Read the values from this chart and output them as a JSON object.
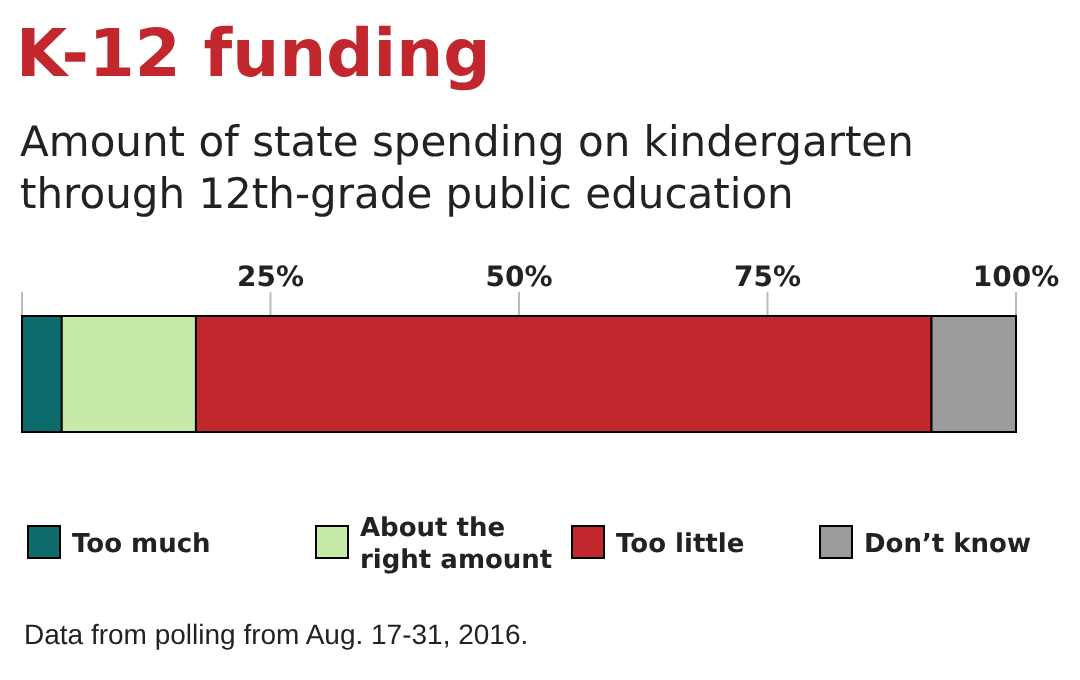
{
  "chart_data": {
    "type": "bar",
    "title": "K-12 funding",
    "subtitle": "Amount of state spending on kindergarten\nthrough 12th-grade public education",
    "orientation": "horizontal",
    "stacked": true,
    "categories": [
      null
    ],
    "series": [
      {
        "name": "Too much",
        "color": "#0e6b6b",
        "values": [
          4
        ]
      },
      {
        "name": "About the\nright amount",
        "color": "#c6eaa8",
        "values": [
          13.5
        ]
      },
      {
        "name": "Too little",
        "color": "#c1272d",
        "values": [
          74
        ]
      },
      {
        "name": "Don’t know",
        "color": "#9b9b9b",
        "values": [
          8.5
        ]
      }
    ],
    "xlim": [
      0,
      100
    ],
    "xticks": [
      {
        "value": 0,
        "label": null
      },
      {
        "value": 25,
        "label": "25%"
      },
      {
        "value": 50,
        "label": "50%"
      },
      {
        "value": 75,
        "label": "75%"
      },
      {
        "value": 100,
        "label": "100%"
      }
    ],
    "grid": "x",
    "legend": "bottom",
    "annotations": [
      "Data from polling from Aug. 17-31, 2016."
    ]
  }
}
